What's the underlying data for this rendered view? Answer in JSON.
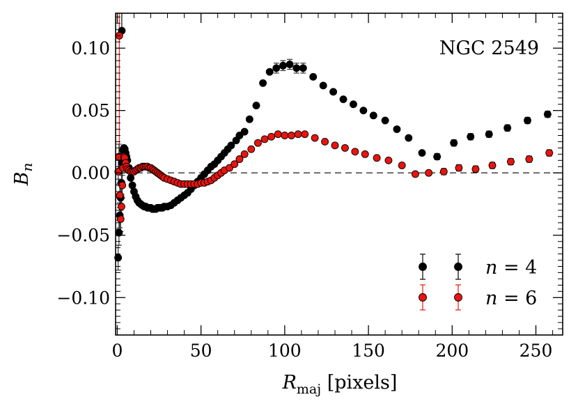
{
  "chart_data": {
    "type": "scatter",
    "title": "",
    "annotation": "NGC 2549",
    "xlabel": {
      "main": "R",
      "sub": "maj",
      "rest": " [pixels]"
    },
    "ylabel": {
      "main": "B",
      "sub": "n"
    },
    "xlim": [
      -1,
      266
    ],
    "ylim": [
      -0.13,
      0.128
    ],
    "xticks": [
      0,
      50,
      100,
      150,
      200,
      250
    ],
    "xtick_labels": [
      "0",
      "50",
      "100",
      "150",
      "200",
      "250"
    ],
    "yticks": [
      -0.1,
      -0.05,
      0.0,
      0.05,
      0.1
    ],
    "ytick_labels": [
      "−0.10",
      "−0.05",
      "0.00",
      "0.05",
      "0.10"
    ],
    "reference_line_y": 0,
    "legend_position": "bottom-right",
    "series": [
      {
        "name": "n = 4",
        "legend": {
          "italic": "n",
          "rest": " = 4"
        },
        "color": "#000000",
        "x": [
          0.5,
          1.0,
          1.5,
          2.0,
          2.5,
          3.0,
          3.5,
          4.0,
          4.5,
          5.0,
          5.5,
          6.0,
          7.0,
          8.0,
          9.0,
          10.0,
          11.0,
          12.0,
          13.0,
          14.0,
          15.0,
          16.0,
          17.0,
          18.0,
          19.0,
          20.0,
          21.0,
          22.0,
          23.0,
          24.0,
          25.0,
          26.0,
          27.0,
          28.0,
          30.0,
          32.0,
          34.0,
          36.0,
          38.0,
          40.0,
          42.0,
          44.0,
          46.0,
          48.0,
          50.0,
          52.0,
          54.0,
          56.0,
          58.0,
          60.0,
          62.0,
          64.0,
          66.0,
          68.0,
          71.0,
          73.0,
          76.0,
          79.0,
          83.0,
          87.0,
          91.0,
          95.0,
          99.0,
          103.0,
          107.0,
          111.0,
          117.0,
          123.0,
          129.0,
          135.0,
          141.0,
          147.0,
          153.0,
          160.0,
          167.0,
          174.0,
          182.0,
          191.0,
          201.0,
          211.0,
          222.0,
          233.0,
          245.0,
          257.0
        ],
        "y": [
          -0.068,
          -0.048,
          -0.034,
          -0.02,
          -0.008,
          0.008,
          0.018,
          0.02,
          0.019,
          0.016,
          0.013,
          0.01,
          0.004,
          -0.004,
          -0.01,
          -0.015,
          -0.019,
          -0.022,
          -0.024,
          -0.025,
          -0.026,
          -0.027,
          -0.027,
          -0.028,
          -0.028,
          -0.028,
          -0.029,
          -0.029,
          -0.029,
          -0.028,
          -0.028,
          -0.028,
          -0.028,
          -0.027,
          -0.027,
          -0.026,
          -0.024,
          -0.022,
          -0.02,
          -0.018,
          -0.016,
          -0.013,
          -0.01,
          -0.007,
          -0.004,
          -0.001,
          0.002,
          0.005,
          0.007,
          0.01,
          0.013,
          0.016,
          0.019,
          0.022,
          0.026,
          0.03,
          0.033,
          0.043,
          0.054,
          0.072,
          0.081,
          0.084,
          0.086,
          0.087,
          0.084,
          0.084,
          0.077,
          0.07,
          0.065,
          0.059,
          0.055,
          0.05,
          0.046,
          0.042,
          0.035,
          0.028,
          0.016,
          0.013,
          0.024,
          0.029,
          0.031,
          0.036,
          0.042,
          0.047
        ],
        "outlier": {
          "x": 2.7,
          "y": 0.114
        }
      },
      {
        "name": "n = 6",
        "legend": {
          "italic": "n",
          "rest": " = 6"
        },
        "color": "#e8140f",
        "x": [
          0.6,
          1.0,
          1.5,
          2.0,
          2.5,
          3.0,
          3.5,
          4.0,
          4.5,
          5.0,
          5.5,
          6.0,
          7.0,
          8.0,
          9.0,
          10.0,
          11.0,
          12.0,
          13.0,
          14.0,
          15.0,
          16.0,
          17.0,
          18.0,
          19.0,
          20.0,
          21.0,
          22.0,
          23.0,
          24.0,
          25.0,
          26.0,
          27.0,
          28.0,
          30.0,
          32.0,
          34.0,
          36.0,
          38.0,
          40.0,
          42.0,
          44.0,
          46.0,
          48.0,
          50.0,
          52.0,
          54.0,
          56.0,
          58.0,
          60.0,
          62.0,
          64.0,
          67.0,
          70.0,
          73.0,
          76.0,
          80.0,
          84.0,
          88.0,
          92.0,
          96.0,
          100.0,
          104.0,
          108.0,
          112.0,
          118.0,
          124.0,
          130.0,
          136.0,
          142.0,
          148.0,
          155.0,
          162.0,
          170.0,
          178.0,
          186.0,
          195.0,
          204.0,
          214.0,
          224.0,
          235.0,
          246.0,
          258.0
        ],
        "y": [
          0.001,
          0.013,
          -0.018,
          -0.037,
          -0.027,
          -0.01,
          0.004,
          0.013,
          0.012,
          0.008,
          0.005,
          0.003,
          0.002,
          0.001,
          0.001,
          0.001,
          0.002,
          0.003,
          0.004,
          0.004,
          0.005,
          0.005,
          0.005,
          0.005,
          0.004,
          0.004,
          0.003,
          0.002,
          0.001,
          0.0,
          -0.001,
          -0.002,
          -0.003,
          -0.004,
          -0.005,
          -0.006,
          -0.007,
          -0.008,
          -0.009,
          -0.009,
          -0.009,
          -0.009,
          -0.009,
          -0.009,
          -0.008,
          -0.008,
          -0.007,
          -0.006,
          -0.004,
          -0.002,
          0.0,
          0.002,
          0.004,
          0.007,
          0.011,
          0.015,
          0.019,
          0.024,
          0.027,
          0.029,
          0.031,
          0.03,
          0.03,
          0.031,
          0.031,
          0.028,
          0.025,
          0.022,
          0.02,
          0.017,
          0.015,
          0.012,
          0.01,
          0.006,
          -0.001,
          0.0,
          0.001,
          0.004,
          0.003,
          0.006,
          0.009,
          0.011,
          0.016
        ],
        "outlier": {
          "x": 1.2,
          "y": 0.11
        }
      }
    ]
  }
}
